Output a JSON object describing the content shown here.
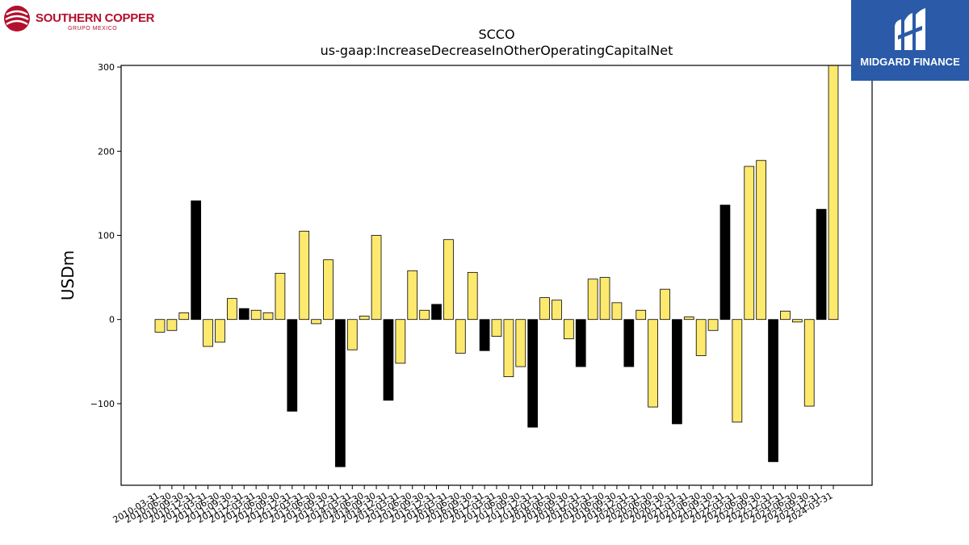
{
  "logos": {
    "left": {
      "name": "SOUTHERN COPPER",
      "sub": "GRUPO MEXICO"
    },
    "right": {
      "name": "MIDGARD FINANCE"
    }
  },
  "colors": {
    "positive_bar": "#fde96e",
    "negative_highlight_bar": "#000000",
    "bar_edge": "#000000",
    "left_logo": "#b3102d",
    "right_logo_bg": "#2a5aa8"
  },
  "chart_data": {
    "type": "bar",
    "title": "SCCO",
    "subtitle": "us-gaap:IncreaseDecreaseInOtherOperatingCapitalNet",
    "xlabel": "",
    "ylabel": "USDm",
    "ylim": [
      -197,
      302
    ],
    "yticks": [
      -100,
      0,
      100,
      200,
      300
    ],
    "grid": false,
    "legend": "none",
    "categories": [
      "2010-03-31",
      "2010-06-30",
      "2010-09-30",
      "2010-12-31",
      "2011-03-31",
      "2011-06-30",
      "2011-09-30",
      "2011-12-31",
      "2012-03-31",
      "2012-06-30",
      "2012-09-30",
      "2012-12-31",
      "2013-03-31",
      "2013-06-30",
      "2013-09-30",
      "2013-12-31",
      "2014-03-31",
      "2014-06-30",
      "2014-09-30",
      "2014-12-31",
      "2015-03-31",
      "2015-06-30",
      "2015-09-30",
      "2015-12-31",
      "2016-03-31",
      "2016-06-30",
      "2016-09-30",
      "2016-12-31",
      "2017-03-31",
      "2017-06-30",
      "2017-09-30",
      "2017-12-31",
      "2018-03-31",
      "2018-06-30",
      "2018-09-30",
      "2018-12-31",
      "2019-03-31",
      "2019-06-30",
      "2019-09-30",
      "2019-12-31",
      "2020-03-31",
      "2020-06-30",
      "2020-09-30",
      "2020-12-31",
      "2021-03-31",
      "2021-06-30",
      "2021-09-30",
      "2021-12-31",
      "2022-03-31",
      "2022-06-30",
      "2022-09-30",
      "2022-12-31",
      "2023-03-31",
      "2023-06-30",
      "2023-09-30",
      "2023-12-31",
      "2024-03-31"
    ],
    "values": [
      -15,
      -13,
      8,
      141,
      -32,
      -27,
      25,
      13,
      11,
      8,
      55,
      -109,
      105,
      -5,
      71,
      -175,
      -36,
      4,
      100,
      -96,
      -52,
      58,
      11,
      18,
      95,
      -40,
      56,
      -37,
      -20,
      -68,
      -56,
      -128,
      26,
      23,
      -23,
      -56,
      48,
      50,
      20,
      -56,
      11,
      -104,
      36,
      -124,
      3,
      -43,
      -13,
      136,
      -122,
      182,
      189,
      -169,
      10,
      -3,
      -103,
      131,
      302
    ],
    "highlighted": [
      false,
      false,
      false,
      true,
      false,
      false,
      false,
      true,
      false,
      false,
      false,
      true,
      false,
      false,
      false,
      true,
      false,
      false,
      false,
      true,
      false,
      false,
      false,
      true,
      false,
      false,
      false,
      true,
      false,
      false,
      false,
      true,
      false,
      false,
      false,
      true,
      false,
      false,
      false,
      true,
      false,
      false,
      false,
      true,
      false,
      false,
      false,
      true,
      false,
      false,
      false,
      true,
      false,
      false,
      false,
      true,
      false
    ]
  }
}
